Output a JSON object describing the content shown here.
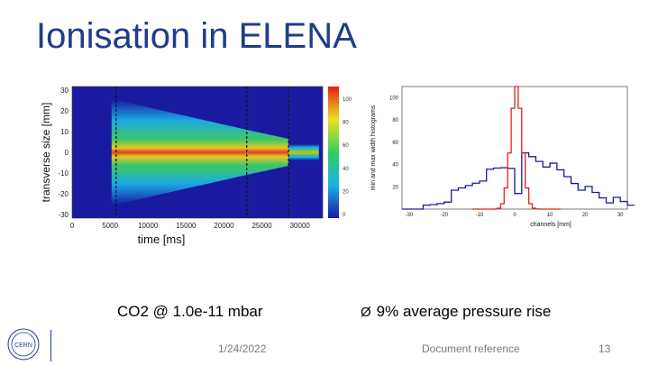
{
  "slide": {
    "title": "Ionisation in ELENA",
    "caption_left": "CO2 @ 1.0e-11 mbar",
    "caption_right": "9% average pressure rise",
    "arrow_glyph": "Ø",
    "date": "1/24/2022",
    "doc_ref": "Document reference",
    "page_number": "13",
    "logo_text": "CERN"
  },
  "heatmap": {
    "y_label": "transverse size [mm]",
    "x_label": "time  [ms]",
    "y_ticks": [
      "30",
      "20",
      "10",
      "0",
      "-10",
      "-20",
      "-30"
    ],
    "x_ticks": [
      "0",
      "5000",
      "10000",
      "15000",
      "20000",
      "25000",
      "30000"
    ],
    "colorbar_ticks": [
      "100",
      "80",
      "60",
      "40",
      "20",
      "0"
    ],
    "markers_ms": [
      5800,
      23000,
      28500
    ]
  },
  "histogram": {
    "y_label": "min and max width histograms",
    "x_label": "channels [mm]",
    "y_ticks": [
      "100",
      "80",
      "60",
      "40",
      "20"
    ],
    "x_ticks": [
      "-30",
      "-20",
      "-10",
      "0",
      "10",
      "20",
      "30"
    ],
    "colors": {
      "narrow": "#e0201f",
      "wide": "#1a1aa0"
    }
  }
}
